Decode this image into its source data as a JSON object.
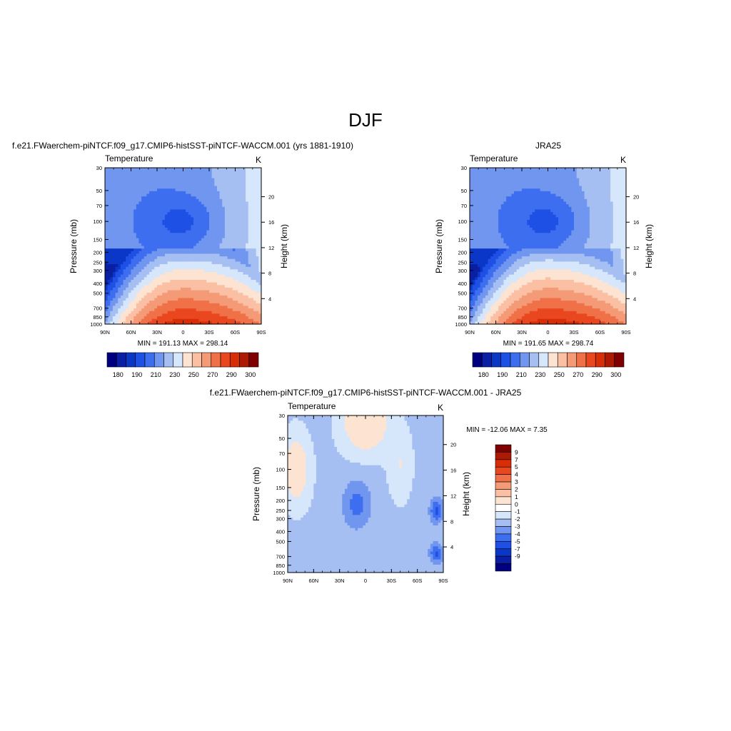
{
  "figure": {
    "title": "DJF"
  },
  "colors": {
    "cold_to_warm": [
      "#00007f",
      "#0a1fa3",
      "#0b37c7",
      "#1e50e6",
      "#3e6ef0",
      "#7096ef",
      "#a6bff2",
      "#d6e6fb",
      "#fde4d2",
      "#fbc0a4",
      "#f59a77",
      "#f07048",
      "#e9471f",
      "#d72e07",
      "#ad1a03",
      "#7f0000"
    ],
    "diff_levels": [
      "#00007f",
      "#0a1fa3",
      "#0b37c7",
      "#1e50e6",
      "#3e6ef0",
      "#7096ef",
      "#a6bff2",
      "#d6e6fb",
      "#ffffff",
      "#fde4d2",
      "#fbc0a4",
      "#f59a77",
      "#f07048",
      "#e9471f",
      "#d72e07",
      "#ad1a03",
      "#7f0000"
    ]
  },
  "panels": {
    "model": {
      "title": "f.e21.FWaerchem-piNTCF.f09_g17.CMIP6-histSST-piNTCF-WACCM.001 (yrs 1881-1910)",
      "left_label": "Temperature",
      "right_label": "K",
      "stats": "MIN = 191.13  MAX = 298.14"
    },
    "obs": {
      "title": "JRA25",
      "left_label": "Temperature",
      "right_label": "K",
      "stats": "MIN = 191.65  MAX = 298.74"
    },
    "diff": {
      "title": "f.e21.FWaerchem-piNTCF.f09_g17.CMIP6-histSST-piNTCF-WACCM.001 - JRA25",
      "left_label": "Temperature",
      "right_label": "K",
      "stats": "MIN = -12.06  MAX =   7.35"
    }
  },
  "axes": {
    "ylabel": "Pressure (mb)",
    "y2label": "Height (km)",
    "pressure_ticks": [
      "30",
      "50",
      "70",
      "100",
      "150",
      "200",
      "250",
      "300",
      "400",
      "500",
      "700",
      "850",
      "1000"
    ],
    "height_ticks": [
      "20",
      "16",
      "12",
      "8",
      "4"
    ],
    "lat_ticks": [
      "90N",
      "60N",
      "30N",
      "0",
      "30S",
      "60S",
      "90S"
    ]
  },
  "colorbars": {
    "model_labels": [
      "180",
      "190",
      "210",
      "230",
      "250",
      "270",
      "290",
      "300"
    ],
    "obs_labels": [
      "180",
      "190",
      "210",
      "230",
      "250",
      "270",
      "290",
      "300"
    ],
    "diff_labels": [
      "9",
      "7",
      "5",
      "4",
      "3",
      "2",
      "1",
      "0",
      "-1",
      "-2",
      "-3",
      "-4",
      "-5",
      "-7",
      "-9"
    ]
  },
  "chart_data": [
    {
      "type": "heatmap",
      "title": "f.e21.FWaerchem-piNTCF.f09_g17.CMIP6-histSST-piNTCF-WACCM.001 (yrs 1881-1910)",
      "xlabel": "",
      "ylabel": "Pressure (mb)",
      "x": [
        "90N",
        "60N",
        "30N",
        "0",
        "30S",
        "60S",
        "90S"
      ],
      "y": [
        30,
        50,
        70,
        100,
        150,
        200,
        250,
        300,
        400,
        500,
        700,
        850,
        1000
      ],
      "min": 191.13,
      "max": 298.14,
      "units": "K"
    },
    {
      "type": "heatmap",
      "title": "JRA25",
      "xlabel": "",
      "ylabel": "Pressure (mb)",
      "x": [
        "90N",
        "60N",
        "30N",
        "0",
        "30S",
        "60S",
        "90S"
      ],
      "y": [
        30,
        50,
        70,
        100,
        150,
        200,
        250,
        300,
        400,
        500,
        700,
        850,
        1000
      ],
      "min": 191.65,
      "max": 298.74,
      "units": "K"
    },
    {
      "type": "heatmap",
      "title": "f.e21.FWaerchem-piNTCF.f09_g17.CMIP6-histSST-piNTCF-WACCM.001 - JRA25",
      "xlabel": "",
      "ylabel": "Pressure (mb)",
      "x": [
        "90N",
        "60N",
        "30N",
        "0",
        "30S",
        "60S",
        "90S"
      ],
      "y": [
        30,
        50,
        70,
        100,
        150,
        200,
        250,
        300,
        400,
        500,
        700,
        850,
        1000
      ],
      "min": -12.06,
      "max": 7.35,
      "units": "K"
    }
  ]
}
